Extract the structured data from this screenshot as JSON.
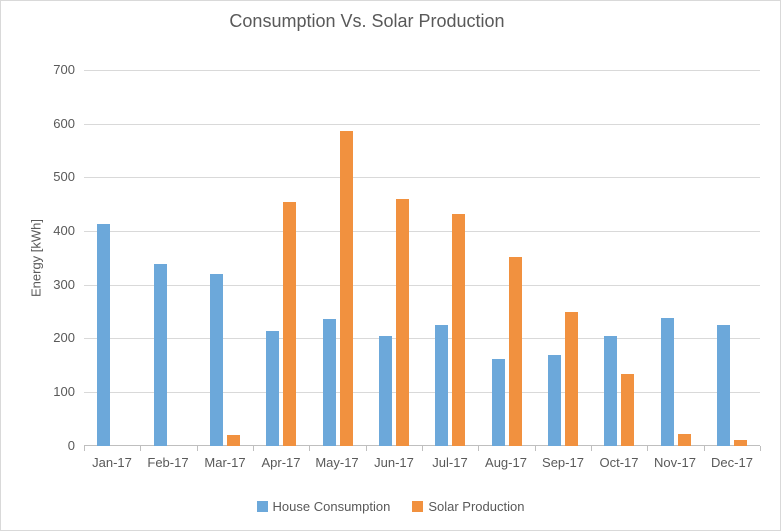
{
  "chart_data": {
    "type": "bar",
    "title": "Consumption Vs. Solar Production",
    "xlabel": "",
    "ylabel": "Energy [kWh]",
    "categories": [
      "Jan-17",
      "Feb-17",
      "Mar-17",
      "Apr-17",
      "May-17",
      "Jun-17",
      "Jul-17",
      "Aug-17",
      "Sep-17",
      "Oct-17",
      "Nov-17",
      "Dec-17"
    ],
    "series": [
      {
        "name": "House Consumption",
        "color": "#6CA8DA",
        "values": [
          413,
          340,
          320,
          215,
          236,
          205,
          225,
          162,
          169,
          205,
          238,
          226
        ]
      },
      {
        "name": "Solar Production",
        "color": "#F1913F",
        "values": [
          0,
          0,
          20,
          454,
          588,
          461,
          432,
          353,
          250,
          134,
          22,
          11
        ]
      }
    ],
    "ylim": [
      0,
      700
    ],
    "yticks": [
      0,
      100,
      200,
      300,
      400,
      500,
      600,
      700
    ],
    "grid": true,
    "legend_position": "bottom",
    "colors": {
      "text": "#595959",
      "gridline": "#D9D9D9",
      "axis_line": "#BFBFBF",
      "background": "#FFFFFF",
      "border": "#D9D9D9"
    }
  }
}
